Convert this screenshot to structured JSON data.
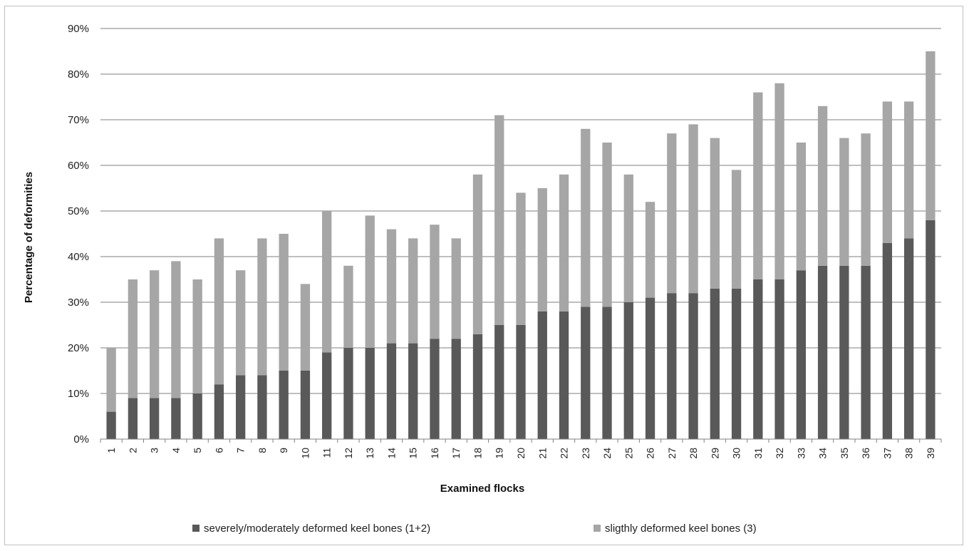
{
  "chart_data": {
    "type": "bar",
    "stacked": true,
    "xlabel": "Examined flocks",
    "ylabel": "Percentage of deformities",
    "ylim": [
      0,
      90
    ],
    "yticks": [
      "0%",
      "10%",
      "20%",
      "30%",
      "40%",
      "50%",
      "60%",
      "70%",
      "80%",
      "90%"
    ],
    "grid": true,
    "legend_position": "bottom",
    "categories": [
      "1",
      "2",
      "3",
      "4",
      "5",
      "6",
      "7",
      "8",
      "9",
      "10",
      "11",
      "12",
      "13",
      "14",
      "15",
      "16",
      "17",
      "18",
      "19",
      "20",
      "21",
      "22",
      "23",
      "24",
      "25",
      "26",
      "27",
      "28",
      "29",
      "30",
      "31",
      "32",
      "33",
      "34",
      "35",
      "36",
      "37",
      "38",
      "39"
    ],
    "series": [
      {
        "name": "severely/moderately deformed keel bones (1+2)",
        "color": "#595959",
        "values": [
          6,
          9,
          9,
          9,
          10,
          12,
          14,
          14,
          15,
          15,
          19,
          20,
          20,
          21,
          21,
          22,
          22,
          23,
          25,
          25,
          28,
          28,
          29,
          29,
          30,
          31,
          32,
          32,
          33,
          33,
          35,
          35,
          37,
          38,
          38,
          38,
          43,
          44,
          48
        ]
      },
      {
        "name": "sligthly deformed keel bones (3)",
        "color": "#a6a6a6",
        "values": [
          14,
          26,
          28,
          30,
          25,
          32,
          23,
          30,
          30,
          19,
          31,
          18,
          29,
          25,
          23,
          25,
          22,
          35,
          46,
          29,
          27,
          30,
          39,
          36,
          28,
          21,
          35,
          37,
          33,
          26,
          41,
          43,
          28,
          35,
          28,
          29,
          31,
          30,
          37
        ]
      }
    ]
  }
}
